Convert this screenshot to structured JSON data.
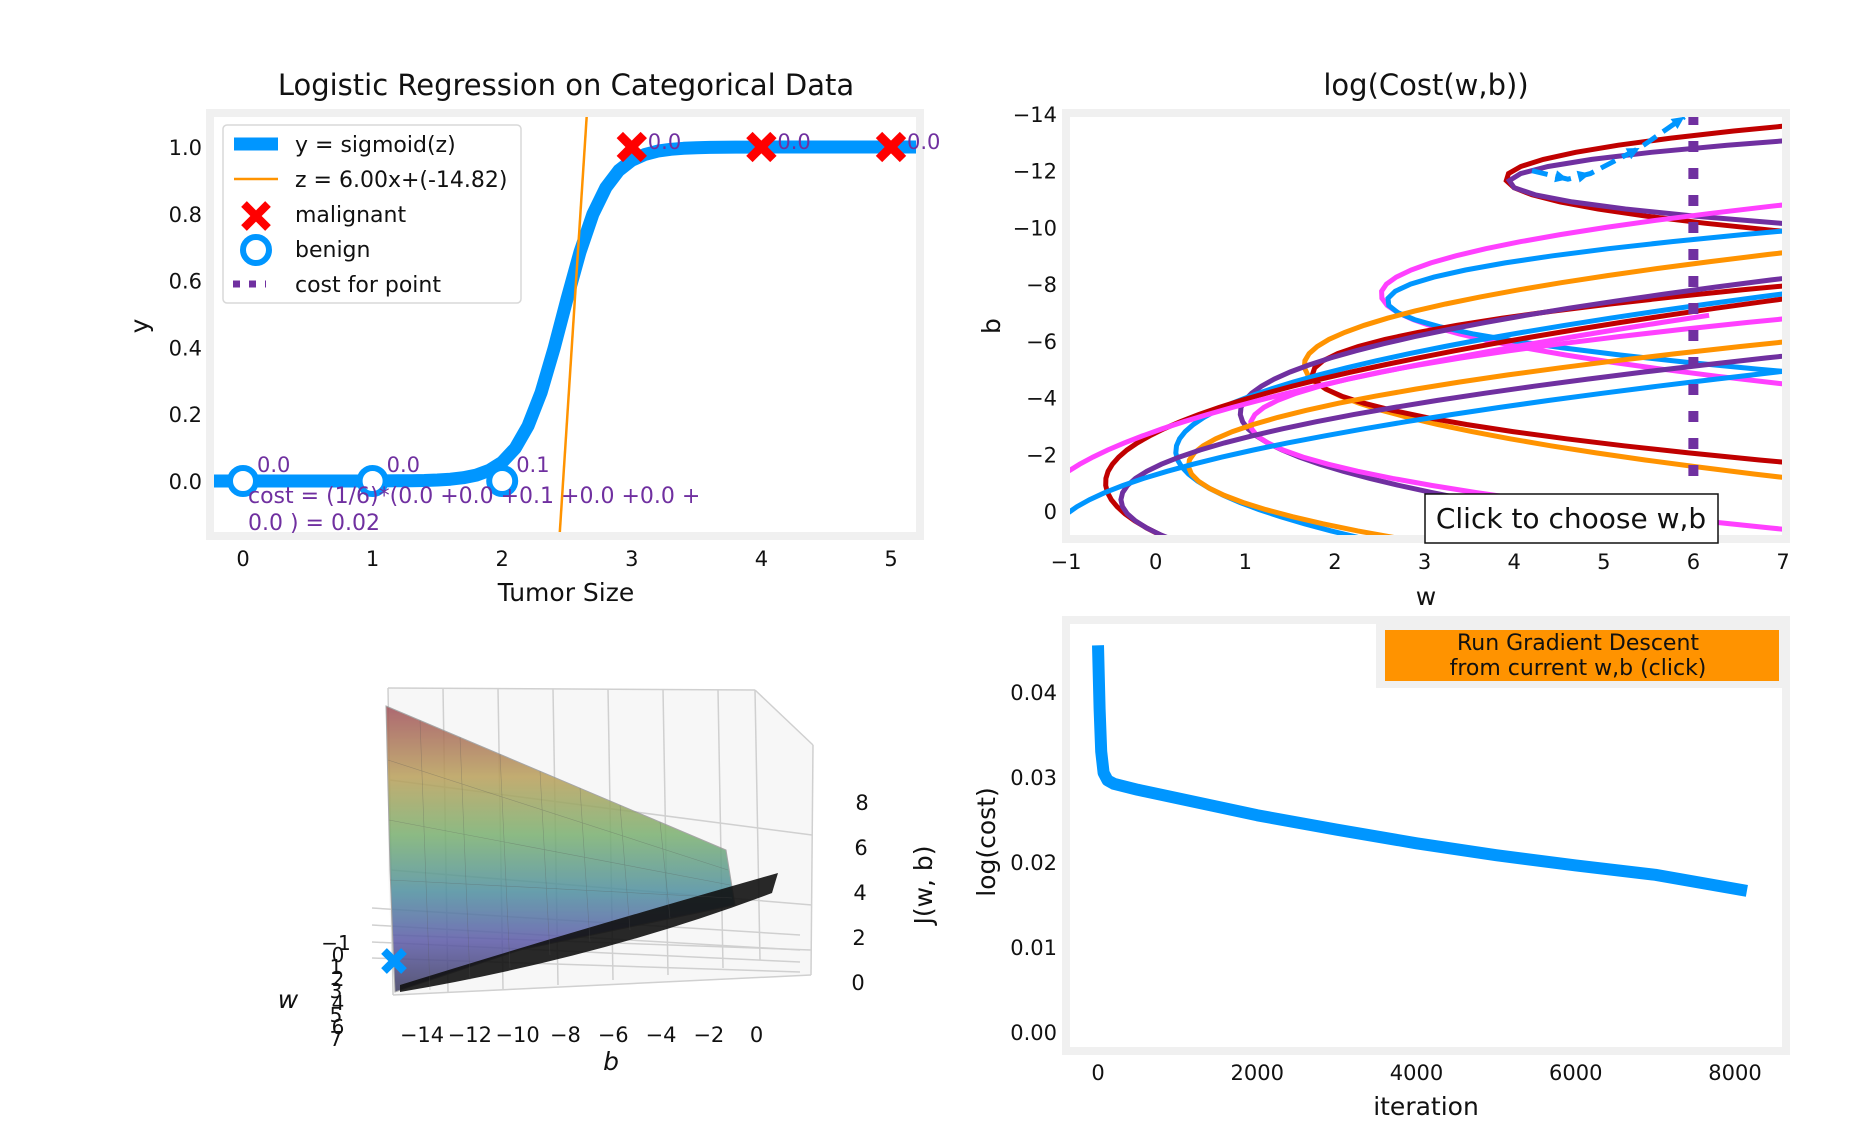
{
  "chart_data": [
    {
      "type": "line",
      "title": "Logistic Regression on Categorical Data",
      "xlabel": "Tumor Size",
      "ylabel": "y",
      "xlim": [
        -0.25,
        5.25
      ],
      "ylim": [
        -0.16,
        1.1
      ],
      "xticks": [
        "0",
        "1",
        "2",
        "3",
        "4",
        "5"
      ],
      "yticks": [
        "0.0",
        "0.2",
        "0.4",
        "0.6",
        "0.8",
        "1.0"
      ],
      "grid": false,
      "legend_position": "upper-left",
      "legend": {
        "sigmoid": "y = sigmoid(z)",
        "linear": "z = 6.00x+(-14.82)",
        "malignant": "malignant",
        "benign": "benign",
        "cost": "cost for point"
      },
      "model": {
        "w": 6.0,
        "b": -14.82
      },
      "series": [
        {
          "kind": "malignant",
          "x": [
            3,
            4,
            5
          ],
          "y": [
            1,
            1,
            1
          ],
          "labels": [
            "0.0",
            "0.0",
            "0.0"
          ]
        },
        {
          "kind": "benign",
          "x": [
            0,
            1,
            2
          ],
          "y": [
            0,
            0,
            0
          ],
          "labels": [
            "0.0",
            "0.0",
            "0.1"
          ]
        }
      ],
      "cost_text": [
        "cost = (1/6)*(0.0 +0.0 +0.1 +0.0 +0.0 +",
        "0.0 ) = 0.02"
      ],
      "colors": {
        "sigmoid": "#0096ff",
        "linear": "#ff9300",
        "malignant": "#ff0000",
        "benign": "#0096ff",
        "cost": "#7030a0"
      }
    },
    {
      "type": "contour",
      "title": "log(Cost(w,b))",
      "xlabel": "w",
      "ylabel": "b",
      "xlim": [
        -1,
        7
      ],
      "ylim": [
        -14,
        1
      ],
      "xticks": [
        "−1",
        "0",
        "1",
        "2",
        "3",
        "4",
        "5",
        "6",
        "7"
      ],
      "yticks": [
        "−14",
        "−12",
        "−10",
        "−8",
        "−6",
        "−4",
        "−2",
        "0"
      ],
      "button": "Click to choose w,b",
      "current_w": 6,
      "path": [
        [
          4.2,
          -12.0
        ],
        [
          4.6,
          -11.7
        ],
        [
          4.85,
          -11.9
        ],
        [
          5.4,
          -12.8
        ],
        [
          5.9,
          -13.9
        ]
      ],
      "colors": [
        "#c00000",
        "#ff9300",
        "#0096ff",
        "#ff40ff",
        "#7030a0"
      ]
    },
    {
      "type": "surface",
      "zlabel": "J(w, b)",
      "xlabel": "b",
      "ylabel": "w",
      "b_ticks": [
        "−14",
        "−12",
        "−10",
        "−8",
        "−6",
        "−4",
        "−2",
        "0"
      ],
      "w_ticks": [
        "−1",
        "0",
        "1",
        "2",
        "3",
        "4",
        "5",
        "6",
        "7"
      ],
      "z_ticks": [
        "0",
        "2",
        "4",
        "6",
        "8"
      ],
      "marker": {
        "color": "#0096ff"
      }
    },
    {
      "type": "line",
      "xlabel": "iteration",
      "ylabel": "log(cost)",
      "xlim": [
        -450,
        8650
      ],
      "ylim": [
        -0.002,
        0.0475
      ],
      "xticks": [
        "0",
        "2000",
        "4000",
        "6000",
        "8000"
      ],
      "yticks": [
        "0.00",
        "0.01",
        "0.02",
        "0.03",
        "0.04"
      ],
      "button": [
        "Run Gradient Descent",
        "from current w,b (click)"
      ],
      "button_color": "#ff9300",
      "line_color": "#0096ff",
      "x": [
        0,
        20,
        40,
        70,
        120,
        200,
        500,
        1000,
        2000,
        3000,
        4000,
        5000,
        6000,
        7000,
        8150
      ],
      "y": [
        0.0455,
        0.038,
        0.033,
        0.0305,
        0.0296,
        0.0292,
        0.0285,
        0.0275,
        0.0255,
        0.0238,
        0.0222,
        0.0208,
        0.0196,
        0.0185,
        0.0166
      ]
    }
  ]
}
